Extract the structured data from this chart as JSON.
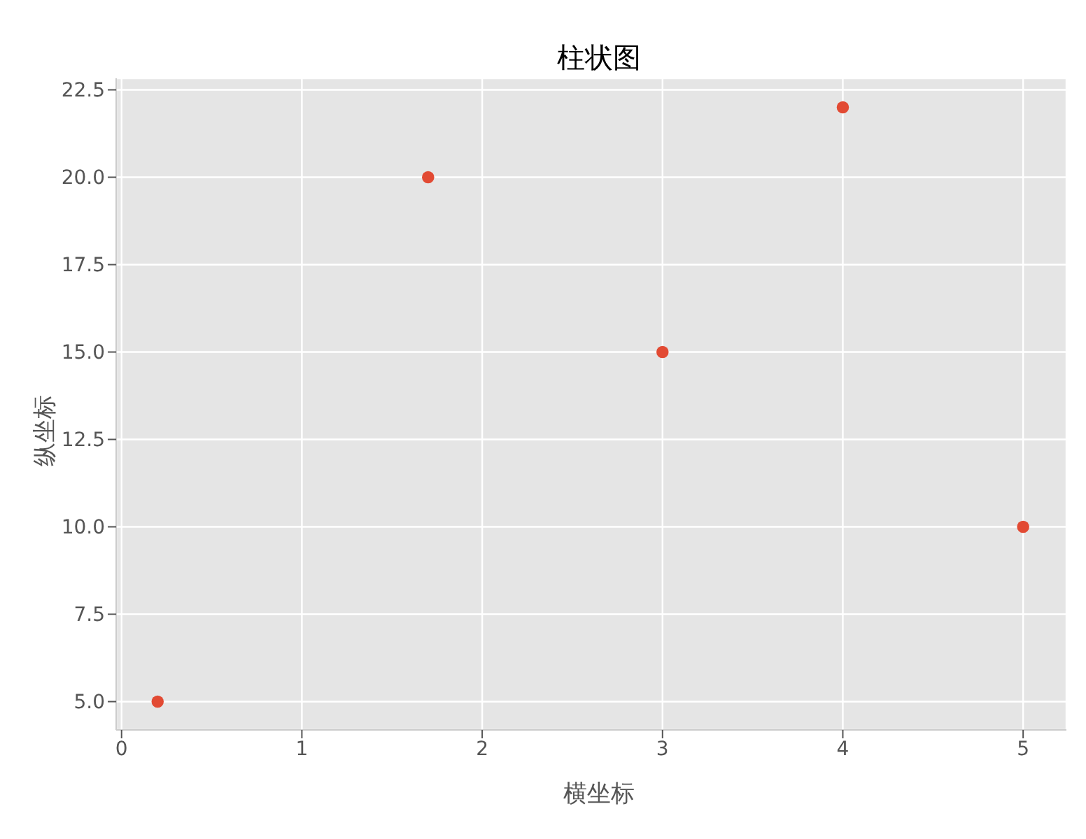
{
  "chart_data": {
    "type": "scatter",
    "title": "柱状图",
    "xlabel": "横坐标",
    "ylabel": "纵坐标",
    "x": [
      0.2,
      1.7,
      3,
      4,
      5
    ],
    "series": [
      {
        "color": "#e24a33",
        "values": [
          5,
          20,
          15,
          22,
          10
        ]
      }
    ],
    "xlim": [
      -0.03,
      5.24
    ],
    "xticks": [
      0,
      1,
      2,
      3,
      4,
      5
    ],
    "ylim": [
      4.19,
      22.83
    ],
    "yticks": [
      {
        "value": 5,
        "label": "5.0"
      },
      7.5,
      {
        "value": 10,
        "label": "10.0"
      },
      12.5,
      {
        "value": 15,
        "label": "15.0"
      },
      17.5,
      {
        "value": 20,
        "label": "20.0"
      },
      22.5
    ],
    "grid": true,
    "marker": "circle",
    "legend": false
  }
}
